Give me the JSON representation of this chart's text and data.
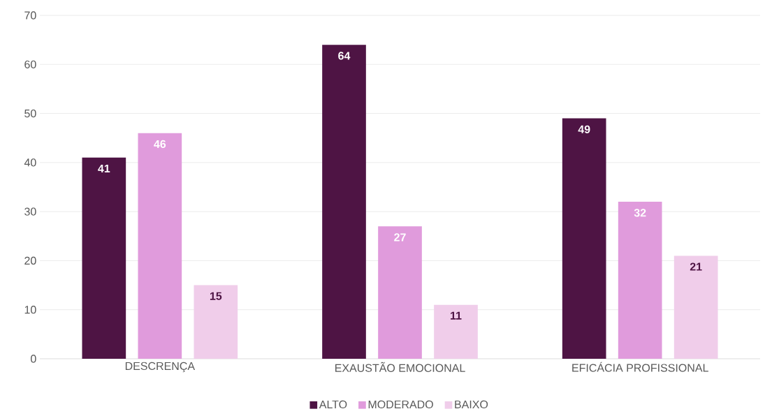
{
  "chart_data": {
    "type": "bar",
    "categories": [
      "DESCRENÇA",
      "EXAUSTÃO EMOCIONAL",
      "EFICÁCIA PROFISSIONAL"
    ],
    "series": [
      {
        "name": "ALTO",
        "color": "#4e1444",
        "values": [
          41,
          64,
          49
        ]
      },
      {
        "name": "MODERADO",
        "color": "#e09bdc",
        "values": [
          46,
          27,
          32
        ]
      },
      {
        "name": "BAIXO",
        "color": "#f0cdea",
        "values": [
          15,
          11,
          21
        ]
      }
    ],
    "ylim": [
      0,
      70
    ],
    "yticks": [
      0,
      10,
      20,
      30,
      40,
      50,
      60,
      70
    ],
    "grid": "y",
    "legend": "bottom",
    "data_labels": true
  }
}
